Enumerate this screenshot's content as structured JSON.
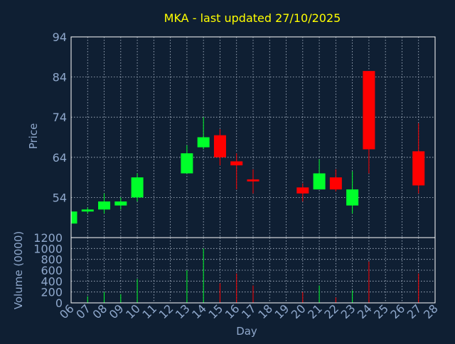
{
  "chart_data": {
    "type": "candlestick",
    "title": "MKA - last updated 27/10/2025",
    "xlabel": "Day",
    "price_panel": {
      "ylabel": "Price",
      "ylim": [
        44,
        94
      ],
      "yticks": [
        54,
        64,
        74,
        84,
        94
      ],
      "grid": true
    },
    "volume_panel": {
      "ylabel": "Volume (0000)",
      "ylim": [
        0,
        1200
      ],
      "yticks": [
        0,
        200,
        400,
        600,
        800,
        1000,
        1200
      ],
      "grid": true
    },
    "x_ticks": [
      "06",
      "07",
      "08",
      "09",
      "10",
      "11",
      "12",
      "13",
      "14",
      "15",
      "16",
      "17",
      "18",
      "19",
      "20",
      "21",
      "22",
      "23",
      "24",
      "25",
      "26",
      "27",
      "28"
    ],
    "xlim": [
      6,
      28
    ],
    "candles": [
      {
        "day": 6,
        "open": 47.5,
        "close": 50.5,
        "high": 50.5,
        "low": 47.5,
        "volume": 0
      },
      {
        "day": 7,
        "open": 50.5,
        "close": 51.0,
        "high": 51.5,
        "low": 50.0,
        "volume": 120
      },
      {
        "day": 8,
        "open": 51.0,
        "close": 53.0,
        "high": 55.0,
        "low": 50.0,
        "volume": 200
      },
      {
        "day": 9,
        "open": 52.0,
        "close": 53.0,
        "high": 54.0,
        "low": 51.0,
        "volume": 160
      },
      {
        "day": 10,
        "open": 54.0,
        "close": 59.0,
        "high": 60.0,
        "low": 53.0,
        "volume": 440
      },
      {
        "day": 13,
        "open": 60.0,
        "close": 65.0,
        "high": 67.0,
        "low": 60.0,
        "volume": 600
      },
      {
        "day": 14,
        "open": 66.5,
        "close": 69.0,
        "high": 74.0,
        "low": 66.0,
        "volume": 1000
      },
      {
        "day": 15,
        "open": 69.5,
        "close": 64.0,
        "high": 71.0,
        "low": 62.0,
        "volume": 360
      },
      {
        "day": 16,
        "open": 63.0,
        "close": 62.0,
        "high": 65.0,
        "low": 56.0,
        "volume": 540
      },
      {
        "day": 17,
        "open": 58.5,
        "close": 58.0,
        "high": 61.0,
        "low": 55.0,
        "volume": 320
      },
      {
        "day": 20,
        "open": 56.5,
        "close": 55.0,
        "high": 57.5,
        "low": 53.0,
        "volume": 200
      },
      {
        "day": 21,
        "open": 56.0,
        "close": 60.0,
        "high": 63.5,
        "low": 56.0,
        "volume": 320
      },
      {
        "day": 22,
        "open": 59.0,
        "close": 56.0,
        "high": 61.0,
        "low": 55.5,
        "volume": 100
      },
      {
        "day": 23,
        "open": 52.0,
        "close": 56.0,
        "high": 60.5,
        "low": 50.0,
        "volume": 230
      },
      {
        "day": 24,
        "open": 85.5,
        "close": 66.0,
        "high": 85.5,
        "low": 60.0,
        "volume": 760
      },
      {
        "day": 27,
        "open": 65.5,
        "close": 57.0,
        "high": 72.5,
        "low": 55.0,
        "volume": 540
      }
    ],
    "colors": {
      "background": "#0f1f33",
      "up": "#00ff2a",
      "down": "#ff0000",
      "title": "#ffff00",
      "axis_text": "#8fa8cc",
      "grid": "#b8c4d4",
      "frame": "#ffffff"
    }
  }
}
